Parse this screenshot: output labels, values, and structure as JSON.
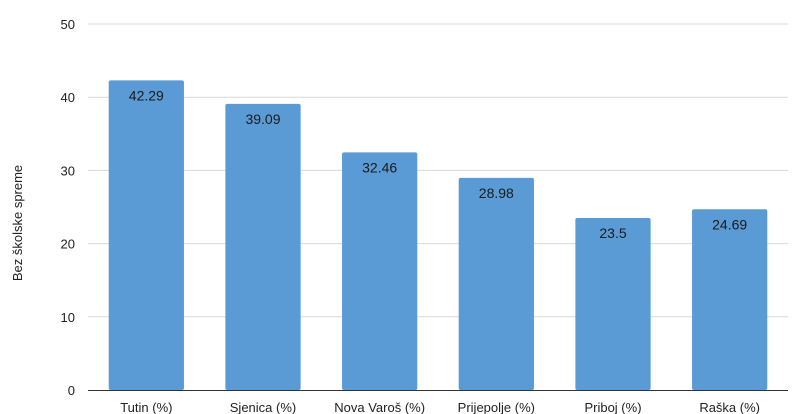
{
  "chart_data": {
    "type": "bar",
    "categories": [
      "Tutin (%)",
      "Sjenica (%)",
      "Nova Varoš (%)",
      "Prijepolje (%)",
      "Priboj (%)",
      "Raška (%)"
    ],
    "values": [
      42.29,
      39.09,
      32.46,
      28.98,
      23.5,
      24.69
    ],
    "data_labels": [
      "42.29",
      "39.09",
      "32.46",
      "28.98",
      "23.5",
      "24.69"
    ],
    "title": "",
    "xlabel": "",
    "ylabel": "Bez školske spreme",
    "ylim": [
      0,
      50
    ],
    "yticks": [
      0,
      10,
      20,
      30,
      40,
      50
    ],
    "grid": true,
    "legend": "none",
    "bar_color": "#5b9bd5",
    "grid_color": "#d9d9d9",
    "axis_color": "#333333"
  }
}
